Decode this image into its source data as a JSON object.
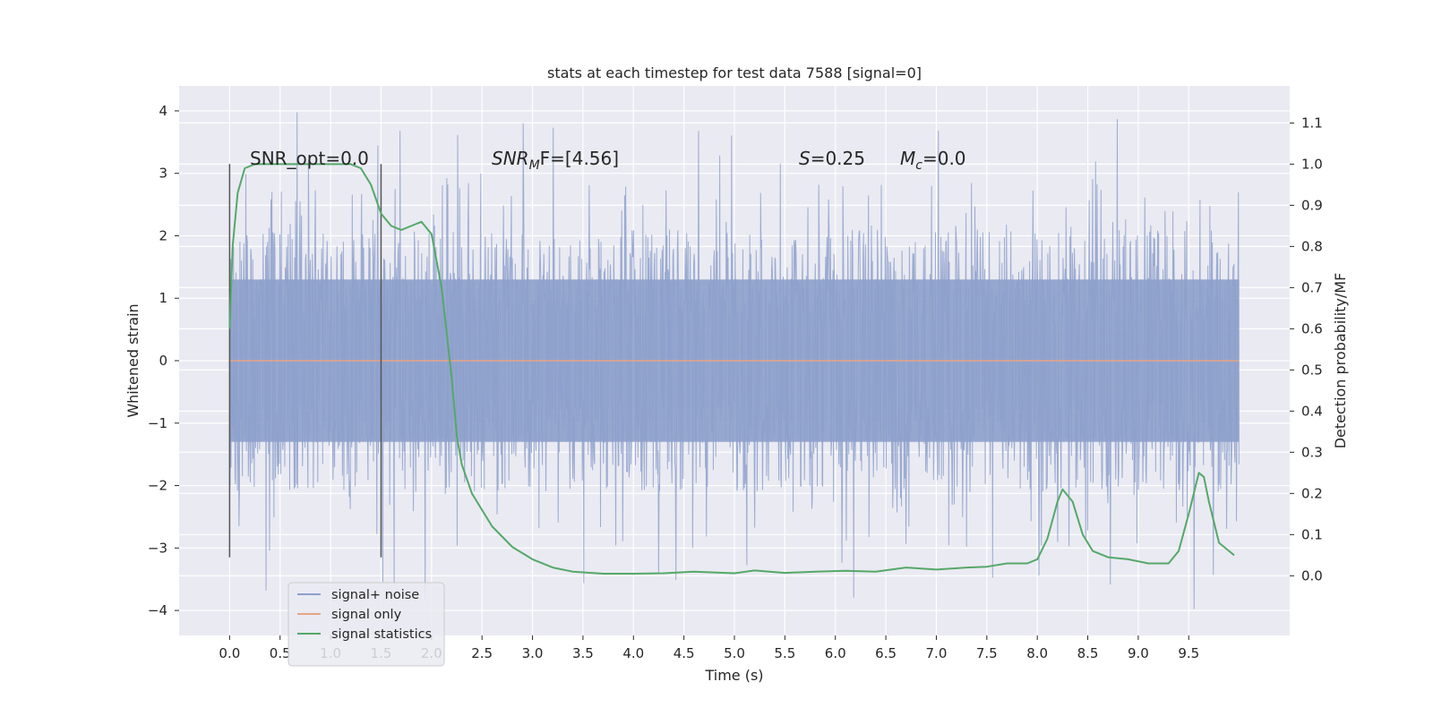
{
  "chart_data": {
    "type": "line",
    "title": "stats at each timestep for test data 7588 [signal=0]",
    "xlabel": "Time (s)",
    "ylabel": "Whitened strain",
    "ylabel_right": "Detection probability/MF",
    "xlim": [
      -0.5,
      10.5
    ],
    "ylim": [
      -4.4,
      4.4
    ],
    "ylim_right": [
      -0.145,
      1.19
    ],
    "x_ticks": [
      "0.0",
      "0.5",
      "1.0",
      "1.5",
      "2.0",
      "2.5",
      "3.0",
      "3.5",
      "4.0",
      "4.5",
      "5.0",
      "5.5",
      "6.0",
      "6.5",
      "7.0",
      "7.5",
      "8.0",
      "8.5",
      "9.0",
      "9.5"
    ],
    "y_ticks": [
      "4",
      "3",
      "2",
      "1",
      "0",
      "−1",
      "−2",
      "−3",
      "−4"
    ],
    "y_right_ticks": [
      "1.1",
      "1.0",
      "0.9",
      "0.8",
      "0.7",
      "0.6",
      "0.5",
      "0.4",
      "0.3",
      "0.2",
      "0.1",
      "0.0"
    ],
    "annotations": {
      "snr_opt": "SNR_opt=0.0",
      "snr_mf_prefix": "SNR",
      "snr_mf_sub": "M",
      "snr_mf_suffix": "F=[4.56]",
      "s_prefix": "S",
      "s_value": "=0.25",
      "mc_prefix": "M",
      "mc_sub": "c",
      "mc_value": "=0.0"
    },
    "vertical_markers": [
      0.0,
      1.5
    ],
    "legend": {
      "position": "lower left",
      "entries": [
        "signal+ noise",
        "signal only",
        "signal statistics"
      ]
    },
    "series": [
      {
        "name": "signal+ noise",
        "axis": "left",
        "kind": "noise",
        "x_range": [
          0.0,
          10.0
        ],
        "core_band": [
          -1.3,
          1.3
        ],
        "typical_peak": [
          -2.2,
          2.2
        ],
        "extreme_range": [
          -4.1,
          4.0
        ]
      },
      {
        "name": "signal only",
        "axis": "left",
        "x": [
          0.0,
          10.0
        ],
        "y": [
          0.0,
          0.0
        ]
      },
      {
        "name": "signal statistics",
        "axis": "right",
        "x": [
          0.0,
          0.03,
          0.08,
          0.15,
          0.25,
          0.4,
          0.6,
          0.8,
          1.0,
          1.2,
          1.3,
          1.4,
          1.5,
          1.6,
          1.7,
          1.8,
          1.9,
          2.0,
          2.1,
          2.2,
          2.25,
          2.3,
          2.4,
          2.5,
          2.6,
          2.8,
          3.0,
          3.2,
          3.4,
          3.7,
          4.0,
          4.3,
          4.6,
          5.0,
          5.2,
          5.5,
          5.8,
          6.1,
          6.4,
          6.7,
          7.0,
          7.3,
          7.5,
          7.7,
          7.9,
          8.0,
          8.1,
          8.2,
          8.25,
          8.35,
          8.45,
          8.55,
          8.7,
          8.9,
          9.1,
          9.2,
          9.3,
          9.4,
          9.5,
          9.6,
          9.65,
          9.7,
          9.8,
          9.9,
          9.95
        ],
        "y": [
          0.6,
          0.8,
          0.93,
          0.99,
          1.0,
          1.0,
          1.0,
          1.0,
          1.0,
          1.0,
          0.99,
          0.95,
          0.88,
          0.85,
          0.84,
          0.85,
          0.86,
          0.83,
          0.7,
          0.48,
          0.34,
          0.27,
          0.2,
          0.16,
          0.12,
          0.07,
          0.04,
          0.02,
          0.01,
          0.005,
          0.005,
          0.006,
          0.01,
          0.006,
          0.013,
          0.007,
          0.01,
          0.012,
          0.01,
          0.02,
          0.015,
          0.02,
          0.022,
          0.03,
          0.03,
          0.04,
          0.09,
          0.18,
          0.21,
          0.18,
          0.1,
          0.06,
          0.045,
          0.04,
          0.03,
          0.03,
          0.03,
          0.06,
          0.15,
          0.25,
          0.24,
          0.18,
          0.08,
          0.06,
          0.05
        ]
      }
    ]
  }
}
